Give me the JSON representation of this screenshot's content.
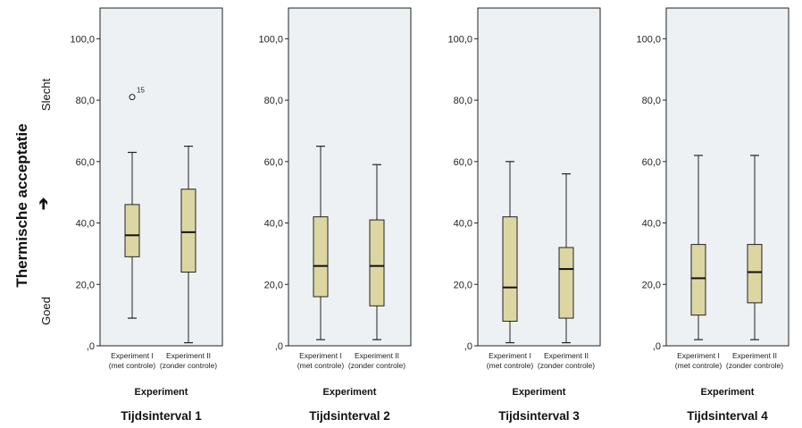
{
  "chart_data": {
    "type": "boxplot",
    "ylabel": "Thermische acceptatie",
    "ylabel_arrow": "➔",
    "ylabel_low": "Goed",
    "ylabel_high": "Slecht",
    "ylim": [
      0,
      110
    ],
    "yticks": [
      {
        "value": 0,
        "label": ",0"
      },
      {
        "value": 20,
        "label": "20,0"
      },
      {
        "value": 40,
        "label": "40,0"
      },
      {
        "value": 60,
        "label": "60,0"
      },
      {
        "value": 80,
        "label": "80,0"
      },
      {
        "value": 100,
        "label": "100,0"
      }
    ],
    "xlabel": "Experiment",
    "categories": [
      {
        "line1": "Experiment I",
        "line2": "(met controle)"
      },
      {
        "line1": "Experiment II",
        "line2": "(zonder controle)"
      }
    ],
    "box_color": "#dcd7a2",
    "panel_bg": "#edf1f3",
    "panels": [
      {
        "title": "Tijdsinterval 1",
        "boxes": [
          {
            "whisker_low": 9,
            "q1": 29,
            "median": 36,
            "q3": 46,
            "whisker_high": 63,
            "outliers": [
              {
                "value": 81,
                "label": "15"
              }
            ]
          },
          {
            "whisker_low": 1,
            "q1": 24,
            "median": 37,
            "q3": 51,
            "whisker_high": 65,
            "outliers": []
          }
        ]
      },
      {
        "title": "Tijdsinterval 2",
        "boxes": [
          {
            "whisker_low": 2,
            "q1": 16,
            "median": 26,
            "q3": 42,
            "whisker_high": 65,
            "outliers": []
          },
          {
            "whisker_low": 2,
            "q1": 13,
            "median": 26,
            "q3": 41,
            "whisker_high": 59,
            "outliers": []
          }
        ]
      },
      {
        "title": "Tijdsinterval 3",
        "boxes": [
          {
            "whisker_low": 1,
            "q1": 8,
            "median": 19,
            "q3": 42,
            "whisker_high": 60,
            "outliers": []
          },
          {
            "whisker_low": 1,
            "q1": 9,
            "median": 25,
            "q3": 32,
            "whisker_high": 56,
            "outliers": []
          }
        ]
      },
      {
        "title": "Tijdsinterval 4",
        "boxes": [
          {
            "whisker_low": 2,
            "q1": 10,
            "median": 22,
            "q3": 33,
            "whisker_high": 62,
            "outliers": []
          },
          {
            "whisker_low": 2,
            "q1": 14,
            "median": 24,
            "q3": 33,
            "whisker_high": 62,
            "outliers": []
          }
        ]
      }
    ]
  }
}
